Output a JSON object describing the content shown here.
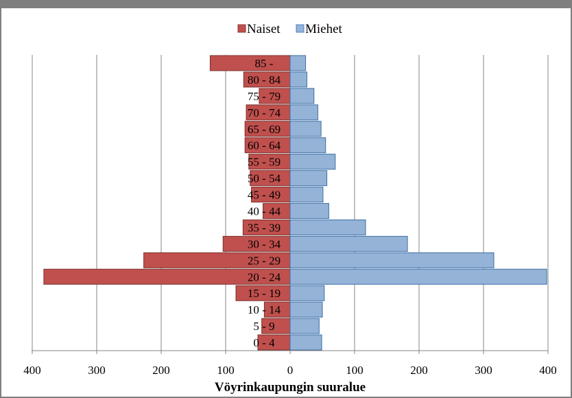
{
  "chart_data": {
    "type": "bar",
    "orientation": "horizontal-population-pyramid",
    "xlabel": "Vöyrinkaupungin suuralue",
    "ylabel": "",
    "xlim": [
      -400,
      400
    ],
    "ticks": [
      {
        "value": -400,
        "label": "400"
      },
      {
        "value": -300,
        "label": "300"
      },
      {
        "value": -200,
        "label": "200"
      },
      {
        "value": -100,
        "label": "100"
      },
      {
        "value": 0,
        "label": "0"
      },
      {
        "value": 100,
        "label": "100"
      },
      {
        "value": 200,
        "label": "200"
      },
      {
        "value": 300,
        "label": "300"
      },
      {
        "value": 400,
        "label": "400"
      }
    ],
    "legend_position": "top",
    "grid": "vertical",
    "categories": [
      "0 - 4",
      "5 - 9",
      "10 - 14",
      "15 - 19",
      "20 - 24",
      "25 - 29",
      "30 - 34",
      "35 - 39",
      "40 - 44",
      "45 - 49",
      "50 - 54",
      "55 - 59",
      "60 - 64",
      "65 - 69",
      "70 - 74",
      "75 - 79",
      "80 - 84",
      "85 -"
    ],
    "series": [
      {
        "name": "Naiset",
        "color": "#c0504d",
        "side": "left",
        "values": [
          50,
          44,
          40,
          84,
          382,
          227,
          104,
          73,
          42,
          60,
          62,
          64,
          70,
          70,
          68,
          48,
          72,
          124
        ]
      },
      {
        "name": "Miehet",
        "color": "#95b3d7",
        "side": "right",
        "values": [
          49,
          45,
          50,
          53,
          398,
          316,
          182,
          117,
          60,
          51,
          57,
          70,
          55,
          48,
          43,
          37,
          26,
          24
        ]
      }
    ]
  }
}
